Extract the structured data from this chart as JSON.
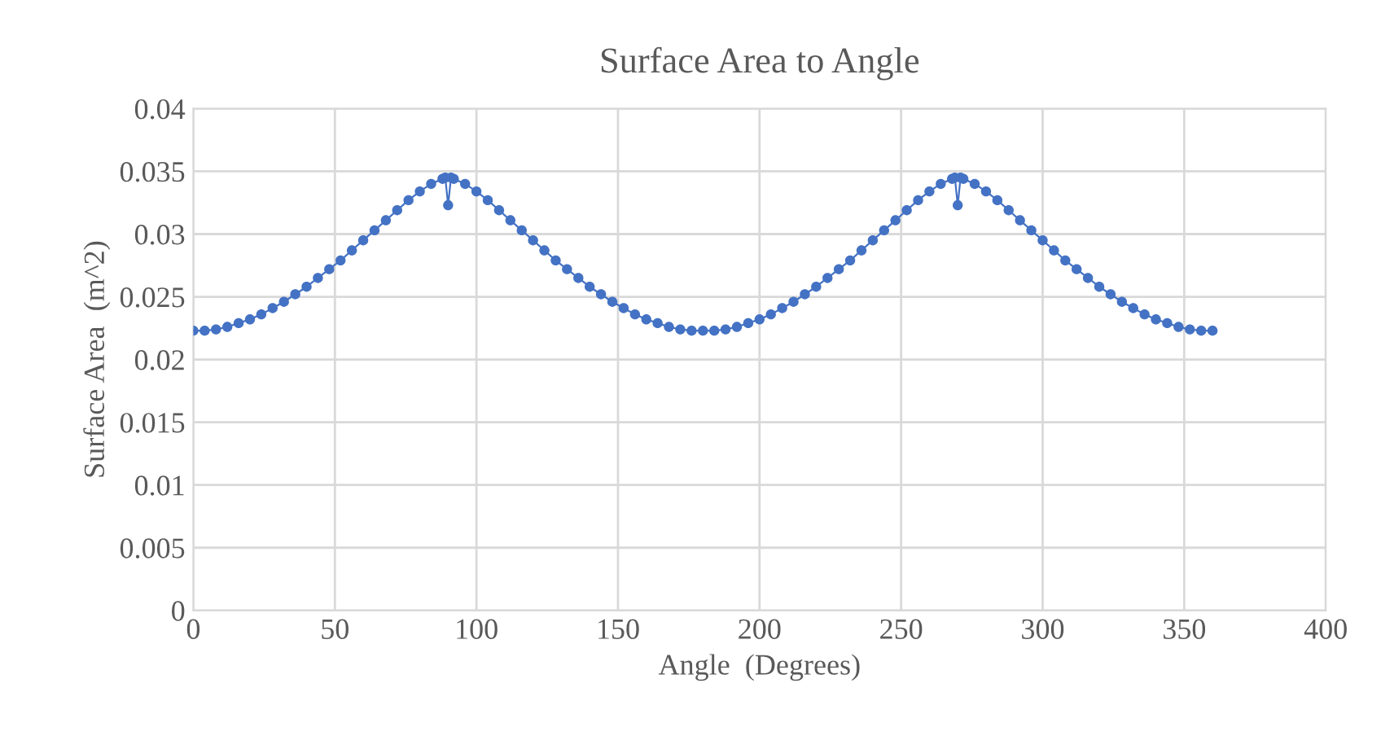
{
  "chart_data": {
    "type": "line",
    "title": "Surface Area to Angle",
    "xlabel": "Angle  (Degrees)",
    "ylabel": "Surface Area  (m^2)",
    "series": [
      {
        "color": "#4472c4",
        "x": [
          0,
          4,
          8,
          12,
          16,
          20,
          24,
          28,
          32,
          36,
          40,
          44,
          48,
          52,
          56,
          60,
          64,
          68,
          72,
          76,
          80,
          84,
          88,
          89,
          90,
          91,
          92,
          96,
          100,
          104,
          108,
          112,
          116,
          120,
          124,
          128,
          132,
          136,
          140,
          144,
          148,
          152,
          156,
          160,
          164,
          168,
          172,
          176,
          180,
          184,
          188,
          192,
          196,
          200,
          204,
          208,
          212,
          216,
          220,
          224,
          228,
          232,
          236,
          240,
          244,
          248,
          252,
          256,
          260,
          264,
          268,
          269,
          270,
          271,
          272,
          276,
          280,
          284,
          288,
          292,
          296,
          300,
          304,
          308,
          312,
          316,
          320,
          324,
          328,
          332,
          336,
          340,
          344,
          348,
          352,
          356,
          360
        ],
        "values": [
          0.0223,
          0.0223,
          0.0224,
          0.0226,
          0.0229,
          0.0232,
          0.0236,
          0.0241,
          0.0246,
          0.0252,
          0.0258,
          0.0265,
          0.0272,
          0.0279,
          0.0287,
          0.0295,
          0.0303,
          0.0311,
          0.0319,
          0.0327,
          0.0334,
          0.034,
          0.0344,
          0.0345,
          0.0323,
          0.0345,
          0.0344,
          0.034,
          0.0334,
          0.0327,
          0.0319,
          0.0311,
          0.0303,
          0.0295,
          0.0287,
          0.0279,
          0.0272,
          0.0265,
          0.0258,
          0.0252,
          0.0246,
          0.0241,
          0.0236,
          0.0232,
          0.0229,
          0.0226,
          0.0224,
          0.0223,
          0.0223,
          0.0223,
          0.0224,
          0.0226,
          0.0229,
          0.0232,
          0.0236,
          0.0241,
          0.0246,
          0.0252,
          0.0258,
          0.0265,
          0.0272,
          0.0279,
          0.0287,
          0.0295,
          0.0303,
          0.0311,
          0.0319,
          0.0327,
          0.0334,
          0.034,
          0.0344,
          0.0345,
          0.0323,
          0.0345,
          0.0344,
          0.034,
          0.0334,
          0.0327,
          0.0319,
          0.0311,
          0.0303,
          0.0295,
          0.0287,
          0.0279,
          0.0272,
          0.0265,
          0.0258,
          0.0252,
          0.0246,
          0.0241,
          0.0236,
          0.0232,
          0.0229,
          0.0226,
          0.0224,
          0.0223,
          0.0223
        ]
      }
    ],
    "xlim": [
      0,
      400
    ],
    "xticks": [
      0,
      50,
      100,
      150,
      200,
      250,
      300,
      350,
      400
    ],
    "ylim": [
      0,
      0.04
    ],
    "yticks": [
      0,
      0.005,
      0.01,
      0.015,
      0.02,
      0.025,
      0.03,
      0.035,
      0.04
    ],
    "grid": true,
    "marker": "circle",
    "line_style": "solid"
  }
}
